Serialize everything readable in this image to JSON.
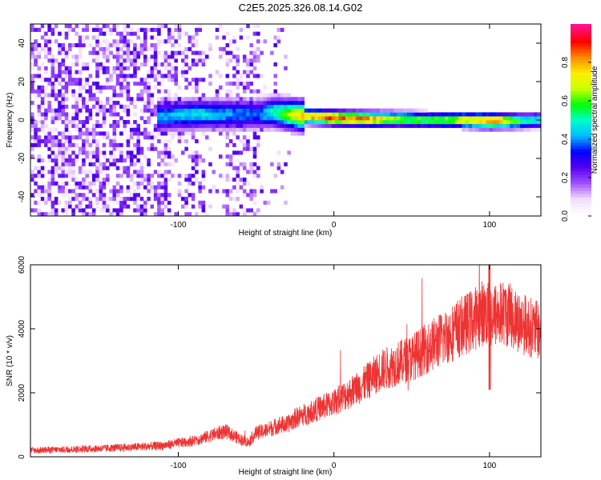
{
  "title": "C2E5.2025.326.08.14.G02",
  "colors": {
    "snr_line": "#ee3333",
    "colormap": [
      "#ffffff",
      "#f0dcff",
      "#a050ff",
      "#5500ee",
      "#0000ff",
      "#00bbff",
      "#00ffcc",
      "#00ff00",
      "#ccff00",
      "#ffee00",
      "#ff8800",
      "#ff0000",
      "#ff1188"
    ]
  },
  "chart_data": [
    {
      "type": "heatmap",
      "xlabel": "Height of straight line (km)",
      "ylabel": "Frequency (Hz)",
      "xlim": [
        -195,
        133
      ],
      "ylim": [
        -50,
        50
      ],
      "x_ticks": [
        -100,
        0,
        100
      ],
      "x_tick_labels": [
        "-100",
        "0",
        "100"
      ],
      "y_ticks": [
        -40,
        -20,
        0,
        20,
        40
      ],
      "y_tick_labels": [
        "-40",
        "-20",
        "0",
        "20",
        "40"
      ],
      "colorbar": {
        "label": "Normalized spectral amplitude",
        "range": [
          0,
          1
        ],
        "ticks": [
          0.0,
          0.2,
          0.4,
          0.6,
          0.8
        ],
        "tick_labels": [
          "0.0",
          "0.2",
          "0.4",
          "0.6",
          "0.8"
        ]
      },
      "ridge": {
        "x": [
          -110,
          -90,
          -70,
          -50,
          -40,
          -30,
          -20,
          -10,
          0,
          20,
          40,
          60,
          80,
          100,
          120,
          133
        ],
        "frequency": [
          1,
          2,
          2,
          2,
          3,
          2,
          1,
          0.5,
          0,
          -0.5,
          -0.5,
          -1,
          -1,
          -1.5,
          -1.5,
          -1
        ],
        "amplitude": [
          0.45,
          0.5,
          0.45,
          0.4,
          0.55,
          0.7,
          0.85,
          0.9,
          0.95,
          0.9,
          0.7,
          0.65,
          0.75,
          0.95,
          0.6,
          0.5
        ]
      }
    },
    {
      "type": "line",
      "xlabel": "Height of straight line (km)",
      "ylabel": "SNR (10 * v/v)",
      "xlim": [
        -195,
        133
      ],
      "ylim": [
        0,
        6000
      ],
      "x_ticks": [
        -100,
        0,
        100
      ],
      "x_tick_labels": [
        "-100",
        "0",
        "100"
      ],
      "y_ticks": [
        0,
        2000,
        4000,
        6000
      ],
      "y_tick_labels": [
        "0",
        "2000",
        "4000",
        "6000"
      ],
      "series": [
        {
          "x": [
            -195,
            -170,
            -150,
            -130,
            -110,
            -100,
            -90,
            -80,
            -70,
            -60,
            -55,
            -50,
            -45,
            -40,
            -35,
            -30,
            -25,
            -20,
            -10,
            0,
            10,
            20,
            30,
            40,
            50,
            60,
            70,
            80,
            90,
            95,
            100,
            110,
            120,
            133
          ],
          "values": [
            200,
            230,
            260,
            300,
            350,
            430,
            500,
            650,
            800,
            550,
            450,
            750,
            800,
            900,
            1000,
            1000,
            1200,
            1300,
            1500,
            1700,
            2000,
            2300,
            2700,
            2900,
            3100,
            3400,
            3700,
            4000,
            4300,
            4500,
            4400,
            4500,
            4200,
            3900
          ]
        }
      ]
    }
  ]
}
